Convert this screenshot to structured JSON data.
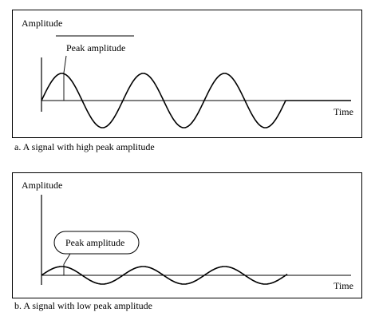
{
  "panel_a": {
    "amplitude_label": "Amplitude",
    "time_label": "Time",
    "peak_label": "Peak amplitude",
    "caption": "a. A signal with high peak amplitude",
    "peak_level": "high"
  },
  "panel_b": {
    "amplitude_label": "Amplitude",
    "time_label": "Time",
    "peak_label": "Peak amplitude",
    "caption": "b. A signal with low peak amplitude",
    "peak_level": "low"
  }
}
